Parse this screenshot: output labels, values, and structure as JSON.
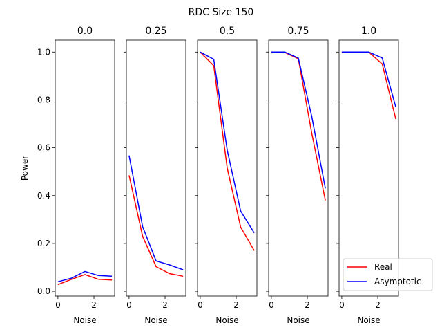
{
  "figure": {
    "title": "RDC Size 150"
  },
  "chart_data": {
    "type": "line",
    "suptitle": "RDC Size 150",
    "xlabel": "Noise",
    "ylabel": "Power",
    "xlim": [
      -0.15,
      3.15
    ],
    "ylim": [
      -0.02,
      1.05
    ],
    "xticks": [
      0,
      2
    ],
    "yticks": [
      0.0,
      0.2,
      0.4,
      0.6,
      0.8,
      1.0
    ],
    "ytick_labels": [
      "0.0",
      "0.2",
      "0.4",
      "0.6",
      "0.8",
      "1.0"
    ],
    "x": [
      0,
      0.75,
      1.5,
      2.25,
      3.0
    ],
    "series_styles": [
      {
        "name": "Real",
        "color": "#ff0000"
      },
      {
        "name": "Asymptotic",
        "color": "#0000ff"
      }
    ],
    "legend": {
      "placement": "lower-right",
      "entries": [
        "Real",
        "Asymptotic"
      ]
    },
    "panels": [
      {
        "title": "0.0",
        "series": [
          {
            "name": "Real",
            "values": [
              0.028,
              0.05,
              0.07,
              0.05,
              0.047
            ]
          },
          {
            "name": "Asymptotic",
            "values": [
              0.04,
              0.055,
              0.083,
              0.066,
              0.063
            ]
          }
        ]
      },
      {
        "title": "0.25",
        "series": [
          {
            "name": "Real",
            "values": [
              0.485,
              0.23,
              0.103,
              0.074,
              0.063
            ]
          },
          {
            "name": "Asymptotic",
            "values": [
              0.568,
              0.27,
              0.127,
              0.11,
              0.09
            ]
          }
        ]
      },
      {
        "title": "0.5",
        "series": [
          {
            "name": "Real",
            "values": [
              1.0,
              0.943,
              0.515,
              0.268,
              0.17
            ]
          },
          {
            "name": "Asymptotic",
            "values": [
              1.0,
              0.97,
              0.59,
              0.335,
              0.244
            ]
          }
        ]
      },
      {
        "title": "0.75",
        "series": [
          {
            "name": "Real",
            "values": [
              0.998,
              0.998,
              0.972,
              0.66,
              0.38
            ]
          },
          {
            "name": "Asymptotic",
            "values": [
              1.0,
              1.0,
              0.975,
              0.73,
              0.43
            ]
          }
        ]
      },
      {
        "title": "1.0",
        "series": [
          {
            "name": "Real",
            "values": [
              1.0,
              1.0,
              1.0,
              0.95,
              0.72
            ]
          },
          {
            "name": "Asymptotic",
            "values": [
              1.0,
              1.0,
              1.0,
              0.975,
              0.77
            ]
          }
        ]
      }
    ]
  }
}
